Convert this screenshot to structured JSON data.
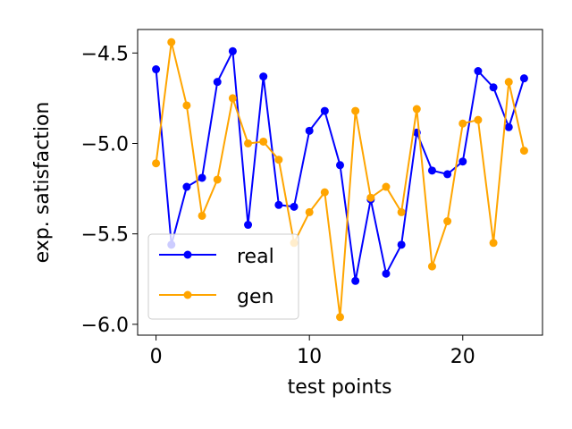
{
  "chart_data": {
    "type": "line",
    "xlabel": "test points",
    "ylabel": "exp. satisfaction",
    "xlim": [
      -1.2,
      25.2
    ],
    "ylim": [
      -6.06,
      -4.37
    ],
    "xticks": [
      0,
      10,
      20
    ],
    "xtick_labels": [
      "0",
      "10",
      "20"
    ],
    "yticks": [
      -6.0,
      -5.5,
      -5.0,
      -4.5
    ],
    "ytick_labels": [
      "−6.0",
      "−5.5",
      "−5.0",
      "−4.5"
    ],
    "grid": false,
    "legend_position": "lower-left",
    "x": [
      0,
      1,
      2,
      3,
      4,
      5,
      6,
      7,
      8,
      9,
      10,
      11,
      12,
      13,
      14,
      15,
      16,
      17,
      18,
      19,
      20,
      21,
      22,
      23,
      24
    ],
    "series": [
      {
        "name": "real",
        "color": "#0000ff",
        "values": [
          -4.59,
          -5.56,
          -5.24,
          -5.19,
          -4.66,
          -4.49,
          -5.45,
          -4.63,
          -5.34,
          -5.35,
          -4.93,
          -4.82,
          -5.12,
          -5.76,
          -5.31,
          -5.72,
          -5.56,
          -4.94,
          -5.15,
          -5.17,
          -5.1,
          -4.6,
          -4.69,
          -4.91,
          -4.64
        ]
      },
      {
        "name": "gen",
        "color": "#ffa500",
        "values": [
          -5.11,
          -4.44,
          -4.79,
          -5.4,
          -5.2,
          -4.75,
          -5.0,
          -4.99,
          -5.09,
          -5.55,
          -5.38,
          -5.27,
          -5.96,
          -4.82,
          -5.3,
          -5.24,
          -5.38,
          -4.81,
          -5.68,
          -5.43,
          -4.89,
          -4.87,
          -5.55,
          -4.66,
          -5.04
        ]
      }
    ]
  }
}
